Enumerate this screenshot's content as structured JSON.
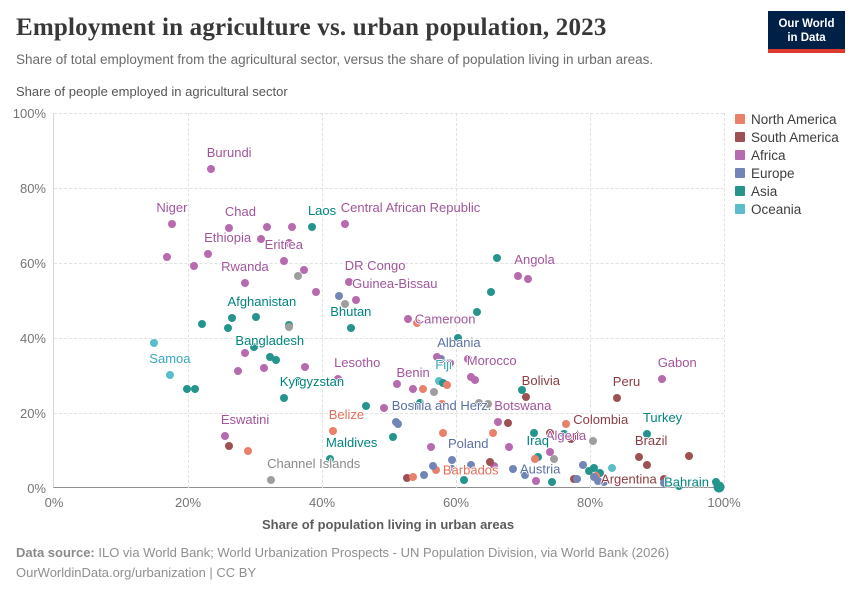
{
  "header": {
    "title": "Employment in agriculture vs. urban population, 2023",
    "subtitle": "Share of total employment from the agricultural sector, versus the share of population living in urban areas.",
    "logo": {
      "line1": "Our World",
      "line2": "in Data",
      "bg_color": "#002147",
      "bar_color": "#dc3a30"
    }
  },
  "legend": {
    "items": [
      {
        "label": "North America",
        "color": "#e9806c"
      },
      {
        "label": "South America",
        "color": "#9d5152"
      },
      {
        "label": "Africa",
        "color": "#b66bae"
      },
      {
        "label": "Europe",
        "color": "#7285b7"
      },
      {
        "label": "Asia",
        "color": "#24948c"
      },
      {
        "label": "Oceania",
        "color": "#5cbcca"
      }
    ]
  },
  "chart_data": {
    "type": "scatter",
    "title": "Employment in agriculture vs. urban population, 2023",
    "xlabel": "Share of population living in urban areas",
    "ylabel": "Share of people employed in agricultural sector",
    "xlim": [
      0,
      100
    ],
    "ylim": [
      0,
      100
    ],
    "x_ticks": [
      "0%",
      "20%",
      "40%",
      "60%",
      "80%",
      "100%"
    ],
    "y_ticks": [
      "0%",
      "20%",
      "40%",
      "60%",
      "80%",
      "100%"
    ],
    "grid": true,
    "legend_position": "right",
    "continents": [
      {
        "name": "North America",
        "dot_color": "#e9806c",
        "label_color": "#e56e5a"
      },
      {
        "name": "South America",
        "dot_color": "#9d5152",
        "label_color": "#8d3c42"
      },
      {
        "name": "Africa",
        "dot_color": "#b66bae",
        "label_color": "#a2559c"
      },
      {
        "name": "Europe",
        "dot_color": "#7285b7",
        "label_color": "#5b6fa5"
      },
      {
        "name": "Asia",
        "dot_color": "#24948c",
        "label_color": "#00847e"
      },
      {
        "name": "Oceania",
        "dot_color": "#5cbcca",
        "label_color": "#38a7bd"
      },
      {
        "name": "Other",
        "dot_color": "#9e9e9e",
        "label_color": "#8a8a8a"
      }
    ],
    "points": [
      {
        "country": "Burundi",
        "continent": "Africa",
        "x": 23.4,
        "y": 85.1,
        "anchor": "above-right"
      },
      {
        "country": "Niger",
        "continent": "Africa",
        "x": 17.6,
        "y": 70.4,
        "anchor": "above"
      },
      {
        "country": "Chad",
        "continent": "Africa",
        "x": 26.1,
        "y": 69.3,
        "anchor": "above-right"
      },
      {
        "country": "Central African Republic",
        "continent": "Africa",
        "x": 43.4,
        "y": 70.4,
        "anchor": "above-right"
      },
      {
        "country": "Ethiopia",
        "continent": "Africa",
        "x": 23.0,
        "y": 62.4,
        "anchor": "above-right"
      },
      {
        "country": "Eritrea",
        "continent": "Africa",
        "x": 34.3,
        "y": 60.6,
        "anchor": "above"
      },
      {
        "country": "Rwanda",
        "continent": "Africa",
        "x": 28.5,
        "y": 54.7,
        "anchor": "above"
      },
      {
        "country": "DR Congo",
        "continent": "Africa",
        "x": 44.0,
        "y": 54.9,
        "anchor": "above-right"
      },
      {
        "country": "Guinea-Bissau",
        "continent": "Africa",
        "x": 45.1,
        "y": 50.1,
        "anchor": "above-right"
      },
      {
        "country": "Cameroon",
        "continent": "Africa",
        "x": 52.8,
        "y": 45.1,
        "anchor": "right"
      },
      {
        "country": "Angola",
        "continent": "Africa",
        "x": 69.3,
        "y": 56.5,
        "anchor": "above-right"
      },
      {
        "country": "Morocco",
        "continent": "Africa",
        "x": 62.2,
        "y": 29.5,
        "anchor": "above-right"
      },
      {
        "country": "Lesotho",
        "continent": "Africa",
        "x": 42.4,
        "y": 29.1,
        "anchor": "above-right"
      },
      {
        "country": "Benin",
        "continent": "Africa",
        "x": 53.6,
        "y": 26.5,
        "anchor": "above"
      },
      {
        "country": "Botswana",
        "continent": "Africa",
        "x": 66.3,
        "y": 17.6,
        "anchor": "above-right"
      },
      {
        "country": "Eswatini",
        "continent": "Africa",
        "x": 25.5,
        "y": 13.8,
        "anchor": "above-right"
      },
      {
        "country": "Algeria",
        "continent": "Africa",
        "x": 74.0,
        "y": 9.6,
        "anchor": "above-right"
      },
      {
        "country": "Gabon",
        "continent": "Africa",
        "x": 90.7,
        "y": 29.1,
        "anchor": "above-right"
      },
      {
        "country": "Laos",
        "continent": "Asia",
        "x": 38.5,
        "y": 69.6,
        "anchor": "above-right"
      },
      {
        "country": "Afghanistan",
        "continent": "Asia",
        "x": 26.5,
        "y": 45.4,
        "anchor": "above-right"
      },
      {
        "country": "Bhutan",
        "continent": "Asia",
        "x": 44.3,
        "y": 42.7,
        "anchor": "above"
      },
      {
        "country": "Bangladesh",
        "continent": "Asia",
        "x": 32.2,
        "y": 34.9,
        "anchor": "above"
      },
      {
        "country": "Kyrgyzstan",
        "continent": "Asia",
        "x": 34.3,
        "y": 23.9,
        "anchor": "above-right"
      },
      {
        "country": "Maldives",
        "continent": "Asia",
        "x": 41.2,
        "y": 7.7,
        "anchor": "above-right"
      },
      {
        "country": "Iraq",
        "continent": "Asia",
        "x": 72.2,
        "y": 8.3,
        "anchor": "above"
      },
      {
        "country": "Turkey",
        "continent": "Asia",
        "x": 88.5,
        "y": 14.4,
        "anchor": "above-right"
      },
      {
        "country": "Bahrain",
        "continent": "Asia",
        "x": 98.8,
        "y": 1.6,
        "anchor": "left"
      },
      {
        "country": "Bolivia",
        "continent": "South America",
        "x": 70.4,
        "y": 24.3,
        "anchor": "above-right"
      },
      {
        "country": "Peru",
        "continent": "South America",
        "x": 84.0,
        "y": 24.0,
        "anchor": "above-right"
      },
      {
        "country": "Colombia",
        "continent": "South America",
        "x": 78.1,
        "y": 13.9,
        "anchor": "above-right"
      },
      {
        "country": "Brazil",
        "continent": "South America",
        "x": 87.3,
        "y": 8.3,
        "anchor": "above-right"
      },
      {
        "country": "Argentina",
        "continent": "South America",
        "x": 91.0,
        "y": 2.4,
        "anchor": "left"
      },
      {
        "country": "Belize",
        "continent": "North America",
        "x": 41.6,
        "y": 15.2,
        "anchor": "above-right"
      },
      {
        "country": "Barbados",
        "continent": "North America",
        "x": 57.0,
        "y": 4.8,
        "anchor": "right"
      },
      {
        "country": "Albania",
        "continent": "Europe",
        "x": 57.8,
        "y": 34.3,
        "anchor": "above-right"
      },
      {
        "country": "Bosnia and Herz.",
        "continent": "Europe",
        "x": 51.0,
        "y": 17.5,
        "anchor": "above-right"
      },
      {
        "country": "Poland",
        "continent": "Europe",
        "x": 59.4,
        "y": 7.5,
        "anchor": "above-right"
      },
      {
        "country": "Austria",
        "continent": "Europe",
        "x": 68.5,
        "y": 5.1,
        "anchor": "right"
      },
      {
        "country": "Samoa",
        "continent": "Oceania",
        "x": 17.3,
        "y": 30.1,
        "anchor": "above"
      },
      {
        "country": "Fiji",
        "continent": "Oceania",
        "x": 57.5,
        "y": 28.5,
        "anchor": "above-right"
      },
      {
        "country": "Channel Islands",
        "continent": "Other",
        "x": 32.4,
        "y": 2.1,
        "anchor": "above-right"
      },
      {
        "continent": "Africa",
        "x": 16.9,
        "y": 61.6
      },
      {
        "continent": "Africa",
        "x": 20.9,
        "y": 59.2
      },
      {
        "continent": "Africa",
        "x": 30.9,
        "y": 66.4
      },
      {
        "continent": "Africa",
        "x": 31.8,
        "y": 69.6
      },
      {
        "continent": "Africa",
        "x": 35.5,
        "y": 69.6
      },
      {
        "continent": "Africa",
        "x": 35.1,
        "y": 65.3
      },
      {
        "continent": "Africa",
        "x": 37.3,
        "y": 58.1
      },
      {
        "continent": "Africa",
        "x": 39.1,
        "y": 52.3
      },
      {
        "continent": "Africa",
        "x": 70.7,
        "y": 55.7
      },
      {
        "continent": "Africa",
        "x": 61.8,
        "y": 34.4
      },
      {
        "continent": "Africa",
        "x": 62.9,
        "y": 28.9
      },
      {
        "continent": "Africa",
        "x": 59.1,
        "y": 33.3
      },
      {
        "continent": "Africa",
        "x": 57.2,
        "y": 34.9
      },
      {
        "continent": "Africa",
        "x": 28.5,
        "y": 36.0
      },
      {
        "continent": "Africa",
        "x": 27.5,
        "y": 31.2
      },
      {
        "continent": "Africa",
        "x": 31.3,
        "y": 32.0
      },
      {
        "continent": "Africa",
        "x": 37.5,
        "y": 32.3
      },
      {
        "continent": "Africa",
        "x": 51.2,
        "y": 27.7
      },
      {
        "continent": "Africa",
        "x": 49.3,
        "y": 21.3
      },
      {
        "continent": "Africa",
        "x": 67.9,
        "y": 10.9
      },
      {
        "continent": "Africa",
        "x": 56.3,
        "y": 10.9
      },
      {
        "continent": "Africa",
        "x": 65.7,
        "y": 5.9
      },
      {
        "continent": "Africa",
        "x": 71.9,
        "y": 1.9
      },
      {
        "continent": "Asia",
        "x": 22.1,
        "y": 43.7
      },
      {
        "continent": "Asia",
        "x": 26.0,
        "y": 42.7
      },
      {
        "continent": "Asia",
        "x": 30.2,
        "y": 45.7
      },
      {
        "continent": "Asia",
        "x": 35.1,
        "y": 43.5
      },
      {
        "continent": "Asia",
        "x": 29.9,
        "y": 37.6
      },
      {
        "continent": "Asia",
        "x": 33.1,
        "y": 34.1
      },
      {
        "continent": "Asia",
        "x": 36.4,
        "y": 28.5
      },
      {
        "continent": "Asia",
        "x": 19.9,
        "y": 26.4
      },
      {
        "continent": "Asia",
        "x": 21.0,
        "y": 26.4
      },
      {
        "continent": "Asia",
        "x": 46.6,
        "y": 21.9
      },
      {
        "continent": "Asia",
        "x": 54.6,
        "y": 22.7
      },
      {
        "continent": "Asia",
        "x": 50.6,
        "y": 13.6
      },
      {
        "continent": "Asia",
        "x": 66.1,
        "y": 61.3
      },
      {
        "continent": "Asia",
        "x": 65.2,
        "y": 52.3
      },
      {
        "continent": "Asia",
        "x": 63.1,
        "y": 46.9
      },
      {
        "continent": "Asia",
        "x": 60.3,
        "y": 40.0
      },
      {
        "continent": "Asia",
        "x": 58.1,
        "y": 28.0
      },
      {
        "continent": "Asia",
        "x": 69.9,
        "y": 26.1
      },
      {
        "continent": "Asia",
        "x": 71.6,
        "y": 14.7
      },
      {
        "continent": "Asia",
        "x": 76.1,
        "y": 14.4
      },
      {
        "continent": "Asia",
        "x": 61.2,
        "y": 2.1
      },
      {
        "continent": "Asia",
        "x": 74.3,
        "y": 1.6
      },
      {
        "continent": "Asia",
        "x": 79.9,
        "y": 4.5
      },
      {
        "continent": "Asia",
        "x": 81.5,
        "y": 4.0
      },
      {
        "continent": "Asia",
        "x": 80.6,
        "y": 5.3
      },
      {
        "continent": "Asia",
        "x": 93.3,
        "y": 0.6
      },
      {
        "continent": "Asia",
        "x": 99.3,
        "y": 0.4,
        "r": 5.5
      },
      {
        "continent": "South America",
        "x": 26.1,
        "y": 11.2
      },
      {
        "continent": "South America",
        "x": 52.7,
        "y": 2.7
      },
      {
        "continent": "South America",
        "x": 65.1,
        "y": 6.9
      },
      {
        "continent": "South America",
        "x": 67.8,
        "y": 17.3
      },
      {
        "continent": "South America",
        "x": 74.0,
        "y": 14.7
      },
      {
        "continent": "South America",
        "x": 77.2,
        "y": 13.2
      },
      {
        "continent": "South America",
        "x": 77.6,
        "y": 2.4
      },
      {
        "continent": "South America",
        "x": 88.5,
        "y": 6.1
      },
      {
        "continent": "South America",
        "x": 94.8,
        "y": 8.5
      },
      {
        "continent": "North America",
        "x": 54.2,
        "y": 44.0
      },
      {
        "continent": "North America",
        "x": 55.1,
        "y": 26.4
      },
      {
        "continent": "North America",
        "x": 58.7,
        "y": 27.5
      },
      {
        "continent": "North America",
        "x": 57.9,
        "y": 22.4
      },
      {
        "continent": "North America",
        "x": 29.0,
        "y": 9.9
      },
      {
        "continent": "North America",
        "x": 53.6,
        "y": 2.9
      },
      {
        "continent": "North America",
        "x": 58.1,
        "y": 14.7
      },
      {
        "continent": "North America",
        "x": 65.5,
        "y": 14.7
      },
      {
        "continent": "North America",
        "x": 71.8,
        "y": 7.7
      },
      {
        "continent": "North America",
        "x": 76.4,
        "y": 17.1
      },
      {
        "continent": "North America",
        "x": 80.9,
        "y": 3.2
      },
      {
        "continent": "Europe",
        "x": 42.5,
        "y": 51.2
      },
      {
        "continent": "Europe",
        "x": 54.0,
        "y": 21.9
      },
      {
        "continent": "Europe",
        "x": 51.3,
        "y": 17.1
      },
      {
        "continent": "Europe",
        "x": 55.2,
        "y": 3.5
      },
      {
        "continent": "Europe",
        "x": 56.6,
        "y": 5.9
      },
      {
        "continent": "Europe",
        "x": 59.4,
        "y": 5.1
      },
      {
        "continent": "Europe",
        "x": 62.2,
        "y": 6.1
      },
      {
        "continent": "Europe",
        "x": 70.3,
        "y": 3.5
      },
      {
        "continent": "Europe",
        "x": 78.1,
        "y": 2.4
      },
      {
        "continent": "Europe",
        "x": 79.0,
        "y": 6.1
      },
      {
        "continent": "Europe",
        "x": 80.6,
        "y": 2.9
      },
      {
        "continent": "Europe",
        "x": 81.2,
        "y": 1.9
      },
      {
        "continent": "Europe",
        "x": 82.1,
        "y": 1.6
      },
      {
        "continent": "Europe",
        "x": 91.0,
        "y": 1.3
      },
      {
        "continent": "Oceania",
        "x": 14.9,
        "y": 38.7
      },
      {
        "continent": "Oceania",
        "x": 83.3,
        "y": 5.3
      },
      {
        "continent": "Other",
        "x": 35.1,
        "y": 42.9
      },
      {
        "continent": "Other",
        "x": 36.4,
        "y": 56.5
      },
      {
        "continent": "Other",
        "x": 43.4,
        "y": 49.1
      },
      {
        "continent": "Other",
        "x": 56.7,
        "y": 25.6
      },
      {
        "continent": "Other",
        "x": 63.4,
        "y": 22.7
      },
      {
        "continent": "Other",
        "x": 64.8,
        "y": 22.5
      },
      {
        "continent": "Other",
        "x": 74.6,
        "y": 7.7
      },
      {
        "continent": "Other",
        "x": 80.4,
        "y": 12.5
      }
    ]
  },
  "footer": {
    "source_label": "Data source:",
    "source_text": " ILO via World Bank; World Urbanization Prospects - UN Population Division, via World Bank (2026)",
    "link_text": "OurWorldinData.org/urbanization | CC BY"
  }
}
